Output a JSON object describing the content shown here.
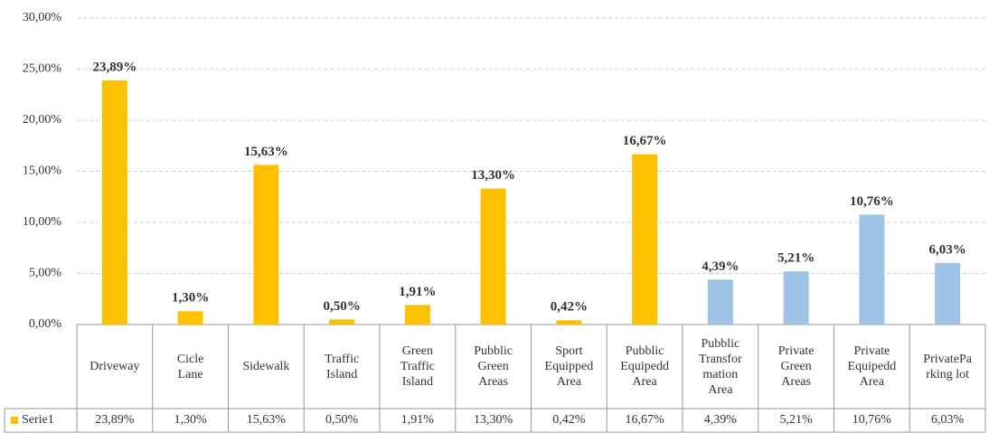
{
  "chart_data": {
    "type": "bar",
    "categories": [
      "Driveway",
      "Cicle\nLane",
      "Sidewalk",
      "Traffic\nIsland",
      "Green\nTraffic\nIsland",
      "Pubblic\nGreen\nAreas",
      "Sport\nEquipped\nArea",
      "Pubblic\nEquipedd\nArea",
      "Pubblic\nTransfor\nmation\nArea",
      "Private\nGreen\nAreas",
      "Private\nEquipedd\nArea",
      "PrivatePa\nrking lot"
    ],
    "series": [
      {
        "name": "Serie1",
        "color": "#FFC000",
        "values": [
          23.89,
          1.3,
          15.63,
          0.5,
          1.91,
          13.3,
          0.42,
          16.67,
          4.39,
          5.21,
          10.76,
          6.03
        ],
        "value_labels": [
          "23,89%",
          "1,30%",
          "15,63%",
          "0,50%",
          "1,91%",
          "13,30%",
          "0,42%",
          "16,67%",
          "4,39%",
          "5,21%",
          "10,76%",
          "6,03%"
        ]
      }
    ],
    "colors": [
      "#FFC000",
      "#FFC000",
      "#FFC000",
      "#FFC000",
      "#FFC000",
      "#FFC000",
      "#FFC000",
      "#FFC000",
      "#9DC3E6",
      "#9DC3E6",
      "#9DC3E6",
      "#9DC3E6"
    ],
    "ylim": [
      0,
      30
    ],
    "yticks": [
      {
        "value": 0,
        "label": "0,00%"
      },
      {
        "value": 5,
        "label": "5,00%"
      },
      {
        "value": 10,
        "label": "10,00%"
      },
      {
        "value": 15,
        "label": "15,00%"
      },
      {
        "value": 20,
        "label": "20,00%"
      },
      {
        "value": 25,
        "label": "25,00%"
      },
      {
        "value": 30,
        "label": "30,00%"
      }
    ],
    "grid": true
  }
}
